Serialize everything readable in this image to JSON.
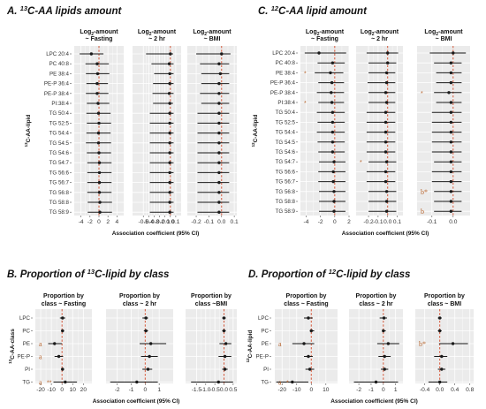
{
  "colors": {
    "panel_bg": "#ebebeb",
    "grid": "#ffffff",
    "ref_line": "#d2583a",
    "point": "#1a1a1a",
    "annotation": "#b5622b"
  },
  "chart_data": [
    {
      "id": "A",
      "type": "forest",
      "title_letter": "A.",
      "title_sup": "13",
      "title_rest": "C-AA lipids amount",
      "ylabel_sup": "13",
      "ylabel_rest": "C-AA-lipid",
      "xlabel": "Association coefficient (95% CI)",
      "categories": [
        "LPC 20:4",
        "PC 40:8",
        "PE 38:4",
        "PE-P 36:4",
        "PE-P 38:4",
        "PI:38:4",
        "TG 50:4",
        "TG 52:5",
        "TG 54:4",
        "TG 54:5",
        "TG 54:6",
        "TG 54:7",
        "TG 56:6",
        "TG 56:7",
        "TG 56:8",
        "TG 58:8",
        "TG 58:9"
      ],
      "panels": [
        {
          "title_main": "Log",
          "title_sub": "2",
          "title_rest": "-amount",
          "title_line2": "~ Fasting",
          "xlim": [
            -5.5,
            5.5
          ],
          "ticks": [
            -4,
            -2,
            0,
            2,
            4
          ],
          "tick_labels": [
            "-4",
            "-2",
            "0",
            "2",
            "4"
          ],
          "est": [
            -1.7,
            -0.4,
            -0.3,
            -0.4,
            -0.4,
            -0.2,
            -0.1,
            0,
            -0.1,
            -0.1,
            0,
            0.1,
            0.1,
            0.1,
            0.1,
            0.2,
            0.2
          ],
          "lo": [
            -4.3,
            -3.0,
            -2.9,
            -2.8,
            -2.9,
            -2.7,
            -2.8,
            -2.7,
            -2.8,
            -2.9,
            -2.7,
            -2.6,
            -2.6,
            -2.6,
            -2.6,
            -2.5,
            -2.5
          ],
          "hi": [
            1.0,
            2.2,
            2.3,
            2.0,
            2.1,
            2.3,
            2.6,
            2.7,
            2.6,
            2.7,
            2.7,
            2.8,
            2.8,
            2.8,
            2.8,
            2.9,
            2.9
          ],
          "annotations": []
        },
        {
          "title_main": "Log",
          "title_sub": "2",
          "title_rest": "-amount",
          "title_line2": "~ 2 hr",
          "xlim": [
            -0.7,
            0.2
          ],
          "ticks": [
            -0.5,
            -0.4,
            -0.3,
            -0.2,
            -0.1,
            0,
            0.1
          ],
          "tick_labels": [
            "-0.5",
            "-0.4",
            "-0.3",
            "-0.2",
            "-0.1",
            "0.0",
            "0.1"
          ],
          "est": [
            0,
            -0.02,
            -0.01,
            -0.01,
            -0.02,
            -0.01,
            -0.01,
            -0.01,
            -0.01,
            -0.01,
            -0.01,
            -0.01,
            -0.01,
            -0.01,
            -0.01,
            -0.01,
            -0.01
          ],
          "lo": [
            -0.45,
            -0.35,
            -0.3,
            -0.32,
            -0.33,
            -0.32,
            -0.38,
            -0.38,
            -0.38,
            -0.38,
            -0.38,
            -0.38,
            -0.38,
            -0.38,
            -0.38,
            -0.38,
            -0.38
          ],
          "hi": [
            0.05,
            0.06,
            0.06,
            0.06,
            0.06,
            0.05,
            0.06,
            0.06,
            0.06,
            0.06,
            0.06,
            0.06,
            0.06,
            0.06,
            0.06,
            0.06,
            0.06
          ],
          "annotations": []
        },
        {
          "title_main": "Log",
          "title_sub": "2",
          "title_rest": "-amount",
          "title_line2": "~ BMI",
          "xlim": [
            -0.27,
            0.12
          ],
          "ticks": [
            -0.2,
            -0.1,
            0,
            0.1
          ],
          "tick_labels": [
            "-0.2",
            "-0.1",
            "0.0",
            "0.1"
          ],
          "est": [
            0,
            -0.02,
            -0.01,
            -0.02,
            -0.02,
            -0.02,
            -0.02,
            -0.02,
            -0.02,
            -0.02,
            -0.02,
            -0.02,
            -0.02,
            -0.02,
            -0.02,
            -0.02,
            -0.02
          ],
          "lo": [
            -0.2,
            -0.17,
            -0.16,
            -0.16,
            -0.17,
            -0.16,
            -0.19,
            -0.19,
            -0.19,
            -0.19,
            -0.19,
            -0.19,
            -0.19,
            -0.19,
            -0.19,
            -0.19,
            -0.19
          ],
          "hi": [
            0.07,
            0.06,
            0.06,
            0.06,
            0.06,
            0.06,
            0.06,
            0.06,
            0.06,
            0.06,
            0.06,
            0.06,
            0.06,
            0.06,
            0.06,
            0.06,
            0.06
          ],
          "annotations": []
        }
      ]
    },
    {
      "id": "C",
      "type": "forest",
      "title_letter": "C.",
      "title_sup": "12",
      "title_rest": "C-AA lipid amount",
      "ylabel_sup": "12",
      "ylabel_rest": "C-AA-lipid",
      "xlabel": "Association coefficient (95% CI)",
      "categories": [
        "LPC 20:4",
        "PC 40:8",
        "PE 38:4",
        "PE-P 36:4",
        "PE-P 38:4",
        "PI:38:4",
        "TG 50:4",
        "TG 52:5",
        "TG 54:4",
        "TG 54:5",
        "TG 54:6",
        "TG 54:7",
        "TG 56:6",
        "TG 56:7",
        "TG 56:8",
        "TG 58:8",
        "TG 58:9"
      ],
      "panels": [
        {
          "title_main": "Log",
          "title_sub": "2",
          "title_rest": "-amount",
          "title_line2": "~ Fasting",
          "xlim": [
            -4.8,
            2.0
          ],
          "ticks": [
            -4,
            -2,
            0,
            2
          ],
          "tick_labels": [
            "-4",
            "-2",
            "0",
            "2"
          ],
          "est": [
            -2.2,
            -0.3,
            -0.6,
            -0.4,
            -0.5,
            -0.4,
            -0.3,
            -0.3,
            -0.3,
            -0.3,
            -0.3,
            -0.1,
            -0.2,
            -0.2,
            -0.1,
            -0.1,
            -0.1
          ],
          "lo": [
            -4.2,
            -2.4,
            -2.8,
            -2.3,
            -2.5,
            -2.3,
            -2.5,
            -2.4,
            -2.5,
            -2.4,
            -2.3,
            -2.2,
            -2.3,
            -2.3,
            -2.2,
            -2.2,
            -2.2
          ],
          "hi": [
            1.6,
            1.4,
            1.2,
            1.3,
            1.3,
            1.3,
            1.4,
            1.4,
            1.4,
            1.4,
            1.4,
            1.5,
            1.5,
            1.5,
            1.5,
            1.5,
            1.5
          ],
          "annotations": [
            {
              "row": 2,
              "text": "*"
            },
            {
              "row": 5,
              "text": "*"
            }
          ]
        },
        {
          "title_main": "Log",
          "title_sub": "2",
          "title_rest": "-amount",
          "title_line2": "~ 2 hr",
          "xlim": [
            -0.33,
            0.16
          ],
          "ticks": [
            -0.2,
            -0.1,
            0,
            0.1
          ],
          "tick_labels": [
            "-0.2",
            "-0.1",
            "0.0",
            "0.1"
          ],
          "est": [
            0,
            0,
            -0.01,
            -0.01,
            -0.02,
            -0.01,
            -0.02,
            -0.02,
            -0.02,
            -0.02,
            -0.02,
            -0.01,
            -0.02,
            -0.02,
            -0.01,
            -0.01,
            -0.01
          ],
          "lo": [
            -0.22,
            -0.2,
            -0.2,
            -0.21,
            -0.2,
            -0.2,
            -0.22,
            -0.22,
            -0.22,
            -0.22,
            -0.22,
            -0.2,
            -0.22,
            -0.22,
            -0.2,
            -0.2,
            -0.2
          ],
          "hi": [
            0.11,
            0.09,
            0.08,
            0.08,
            0.08,
            0.08,
            0.08,
            0.08,
            0.08,
            0.08,
            0.08,
            0.09,
            0.08,
            0.08,
            0.09,
            0.09,
            0.09
          ],
          "annotations": [
            {
              "row": 11,
              "text": "*"
            }
          ]
        },
        {
          "title_main": "Log",
          "title_sub": "2",
          "title_rest": "-amount",
          "title_line2": "~ BMI",
          "xlim": [
            -0.17,
            0.08
          ],
          "ticks": [
            -0.1,
            0
          ],
          "tick_labels": [
            "-0.1",
            "0.0"
          ],
          "est": [
            0,
            -0.01,
            -0.01,
            -0.01,
            -0.02,
            -0.01,
            -0.01,
            -0.01,
            -0.01,
            -0.01,
            -0.01,
            -0.01,
            -0.01,
            -0.01,
            -0.01,
            -0.01,
            -0.01
          ],
          "lo": [
            -0.11,
            -0.09,
            -0.08,
            -0.08,
            -0.09,
            -0.08,
            -0.1,
            -0.1,
            -0.1,
            -0.1,
            -0.1,
            -0.09,
            -0.1,
            -0.1,
            -0.09,
            -0.09,
            -0.09
          ],
          "hi": [
            0.06,
            0.04,
            0.04,
            0.04,
            0.04,
            0.04,
            0.04,
            0.04,
            0.04,
            0.04,
            0.04,
            0.04,
            0.04,
            0.04,
            0.04,
            0.04,
            0.04
          ],
          "annotations": [
            {
              "row": 4,
              "text": "*"
            },
            {
              "row": 14,
              "text": "b*"
            },
            {
              "row": 16,
              "text": "b"
            }
          ]
        }
      ]
    },
    {
      "id": "B",
      "type": "forest",
      "title_letter": "B.",
      "title_pre": "Proportion of ",
      "title_sup": "13",
      "title_rest": "C-lipid by class",
      "ylabel_sup": "13",
      "ylabel_rest": "C-AA-class",
      "xlabel": "Association coefficient (95% CI)",
      "categories": [
        "LPC",
        "PC",
        "PE",
        "PE-P",
        "PI",
        "TG"
      ],
      "panels": [
        {
          "title_main": "Proportion by",
          "title_line2": "class ~ Fasting",
          "xlim": [
            -25,
            28
          ],
          "ticks": [
            -20,
            -10,
            0,
            10,
            20
          ],
          "tick_labels": [
            "-20",
            "-10",
            "0",
            "10",
            "20"
          ],
          "est": [
            0.5,
            0.5,
            -7,
            -3,
            0.5,
            3
          ],
          "lo": [
            -2,
            -1,
            -13,
            -7,
            -1,
            -8
          ],
          "hi": [
            3,
            2,
            0,
            1,
            2,
            14
          ],
          "annotations": [
            {
              "row": 2,
              "text": "a"
            },
            {
              "row": 3,
              "text": "a"
            },
            {
              "row": 5,
              "text": "a"
            },
            {
              "row": 5,
              "text": "**"
            }
          ]
        },
        {
          "title_main": "Proportion by",
          "title_line2": "class ~ 2 hr",
          "xlim": [
            -2.8,
            2.0
          ],
          "ticks": [
            -2,
            -1,
            0,
            1
          ],
          "tick_labels": [
            "-2",
            "-1",
            "0",
            "1"
          ],
          "est": [
            0.05,
            0.05,
            0.4,
            0.3,
            0.2,
            -0.6
          ],
          "lo": [
            -0.2,
            -0.1,
            -0.4,
            -0.3,
            -0.2,
            -2.5
          ],
          "hi": [
            0.2,
            0.2,
            1.5,
            0.9,
            0.5,
            0.9
          ],
          "annotations": []
        },
        {
          "title_main": "Proportion by",
          "title_line2": "class ~BMI",
          "xlim": [
            -2.1,
            0.7
          ],
          "ticks": [
            -1.5,
            -1,
            -0.5,
            0,
            0.5
          ],
          "tick_labels": [
            "-1.5",
            "-1.0",
            "-0.5",
            "0.0",
            "0.5"
          ],
          "est": [
            0,
            0,
            0.1,
            0.05,
            0.05,
            -0.3
          ],
          "lo": [
            -0.1,
            -0.1,
            -0.25,
            -0.3,
            -0.1,
            -1.8
          ],
          "hi": [
            0.1,
            0.1,
            0.4,
            0.4,
            0.2,
            0.5
          ],
          "annotations": []
        }
      ]
    },
    {
      "id": "D",
      "type": "forest",
      "title_letter": "D.",
      "title_pre": "Proportion of ",
      "title_sup": "12",
      "title_rest": "C-lipid by class",
      "ylabel_sup": "12",
      "ylabel_rest": "C-AA-lipid",
      "xlabel": "Association coefficient (95% CI)",
      "categories": [
        "LPC",
        "PC",
        "PE",
        "PE-P",
        "PI",
        "TG"
      ],
      "panels": [
        {
          "title_main": "Proportion by",
          "title_line2": "class ~ Fasting",
          "xlim": [
            -25,
            18
          ],
          "ticks": [
            -20,
            -10,
            0,
            10
          ],
          "tick_labels": [
            "-20",
            "-10",
            "0",
            "10"
          ],
          "est": [
            -2,
            0,
            -5,
            -2,
            -1,
            -13
          ],
          "lo": [
            -5,
            -1,
            -13,
            -5,
            -4,
            -24
          ],
          "hi": [
            1,
            2,
            2,
            1,
            2,
            -2
          ],
          "annotations": [
            {
              "row": 2,
              "text": "a"
            },
            {
              "row": 5,
              "text": "a"
            },
            {
              "row": 5,
              "text": "*"
            }
          ]
        },
        {
          "title_main": "Proportion by",
          "title_line2": "class ~ 2 hr",
          "xlim": [
            -2.8,
            1.6
          ],
          "ticks": [
            -2,
            -1,
            0,
            1
          ],
          "tick_labels": [
            "-2",
            "-1",
            "0",
            "1"
          ],
          "est": [
            0.05,
            0,
            0.4,
            0.1,
            0.1,
            -0.6
          ],
          "lo": [
            -0.3,
            -0.1,
            -0.5,
            -0.4,
            -0.2,
            -2.4
          ],
          "hi": [
            0.3,
            0.2,
            1.3,
            0.6,
            0.4,
            1.2
          ],
          "annotations": []
        },
        {
          "title_main": "Proportion by",
          "title_line2": "class ~ BMI",
          "xlim": [
            -0.65,
            0.9
          ],
          "ticks": [
            -0.4,
            0,
            0.4,
            0.8
          ],
          "tick_labels": [
            "-0.4",
            "0.0",
            "0.4",
            "0.8"
          ],
          "est": [
            0,
            0,
            0.35,
            0.05,
            0.05,
            0
          ],
          "lo": [
            -0.05,
            -0.05,
            -0.02,
            -0.15,
            -0.05,
            -0.3
          ],
          "hi": [
            0.05,
            0.05,
            0.75,
            0.2,
            0.15,
            0.2
          ],
          "annotations": [
            {
              "row": 2,
              "text": "b*"
            }
          ]
        }
      ]
    }
  ]
}
